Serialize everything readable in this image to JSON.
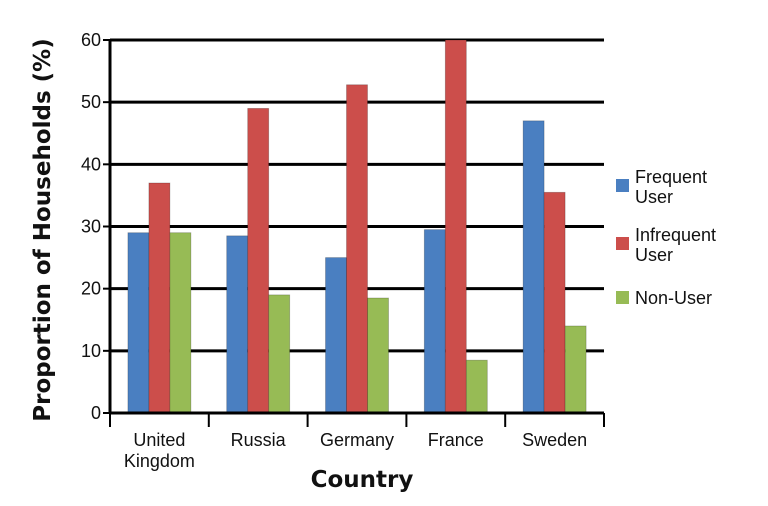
{
  "chart_data": {
    "type": "bar",
    "xlabel": "Country",
    "ylabel": "Proportion of Households (%)",
    "categories": [
      [
        "United",
        "Kingdom"
      ],
      [
        "Russia"
      ],
      [
        "Germany"
      ],
      [
        "France"
      ],
      [
        "Sweden"
      ]
    ],
    "series": [
      {
        "name": [
          "Frequent",
          "User"
        ],
        "color": "#4a7fc1",
        "values": [
          29,
          28.5,
          25,
          29.5,
          47
        ]
      },
      {
        "name": [
          "Infrequent",
          "User"
        ],
        "color": "#cc4e4b",
        "values": [
          37,
          49,
          52.8,
          60,
          35.5
        ]
      },
      {
        "name": [
          "Non-User"
        ],
        "color": "#97bb55",
        "values": [
          29,
          19,
          18.5,
          8.5,
          14
        ]
      }
    ],
    "ylim": [
      0,
      60
    ],
    "yticks": [
      0,
      10,
      20,
      30,
      40,
      50,
      60
    ],
    "grid": true,
    "legend": "right"
  }
}
